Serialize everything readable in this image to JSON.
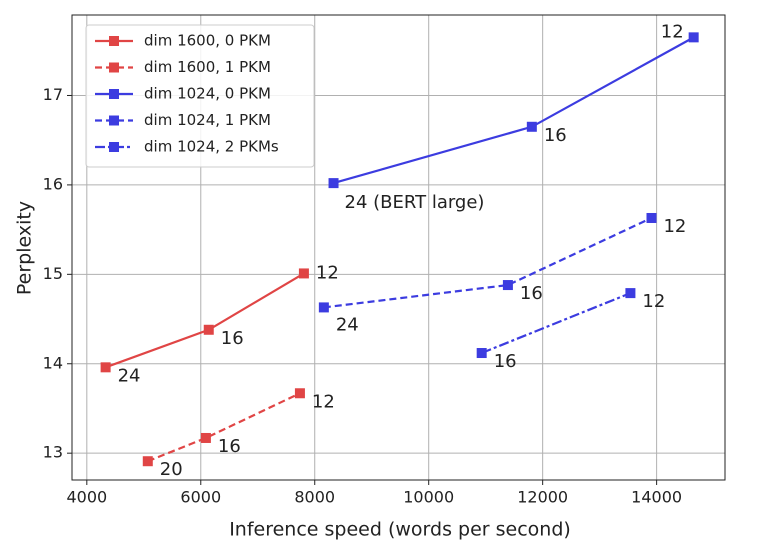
{
  "chart_data": {
    "type": "line",
    "xlabel": "Inference speed (words per second)",
    "ylabel": "Perplexity",
    "xlim": [
      3740,
      15200
    ],
    "ylim": [
      12.7,
      17.9
    ],
    "xticks": [
      4000,
      6000,
      8000,
      10000,
      12000,
      14000
    ],
    "yticks": [
      13,
      14,
      15,
      16,
      17
    ],
    "grid": true,
    "legend": "upper left",
    "series": [
      {
        "name": "dim 1600, 0 PKM",
        "color": "#e04545",
        "dash": "solid",
        "x": [
          4330,
          6140,
          7810
        ],
        "values": [
          13.96,
          14.38,
          15.01
        ],
        "labels": [
          "24",
          "16",
          "12"
        ]
      },
      {
        "name": "dim 1600, 1 PKM",
        "color": "#e04545",
        "dash": "dashed",
        "x": [
          5070,
          6090,
          7740
        ],
        "values": [
          12.91,
          13.17,
          13.67
        ],
        "labels": [
          "20",
          "16",
          "12"
        ]
      },
      {
        "name": "dim 1024, 0 PKM",
        "color": "#3c3ce0",
        "dash": "solid",
        "x": [
          8330,
          11810,
          14650
        ],
        "values": [
          16.02,
          16.65,
          17.65
        ],
        "labels": [
          "24 (BERT large)",
          "16",
          "12"
        ]
      },
      {
        "name": "dim 1024, 1 PKM",
        "color": "#3c3ce0",
        "dash": "dashed",
        "x": [
          8160,
          11390,
          13910
        ],
        "values": [
          14.63,
          14.88,
          15.63
        ],
        "labels": [
          "24",
          "16",
          "12"
        ]
      },
      {
        "name": "dim 1024, 2 PKMs",
        "color": "#3c3ce0",
        "dash": "dashdot",
        "x": [
          10930,
          13540
        ],
        "values": [
          14.12,
          14.79
        ],
        "labels": [
          "16",
          "12"
        ]
      }
    ]
  }
}
